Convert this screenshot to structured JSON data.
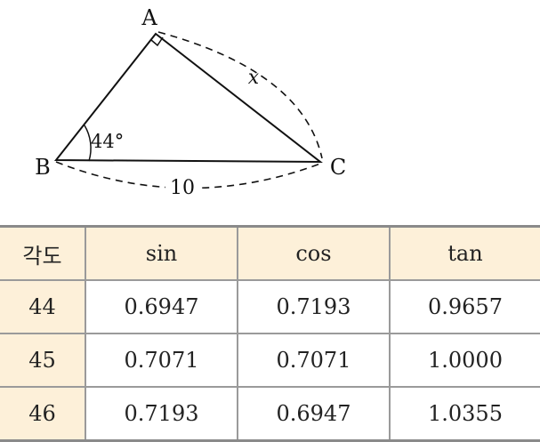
{
  "diagram": {
    "vertices": {
      "A": "A",
      "B": "B",
      "C": "C"
    },
    "side_label": "x",
    "angle_label": "44°",
    "base_label": "10"
  },
  "table": {
    "header": [
      "각도",
      "sin",
      "cos",
      "tan"
    ],
    "rows": [
      [
        "44",
        "0.6947",
        "0.7193",
        "0.9657"
      ],
      [
        "45",
        "0.7071",
        "0.7071",
        "1.0000"
      ],
      [
        "46",
        "0.7193",
        "0.6947",
        "1.0355"
      ]
    ]
  }
}
